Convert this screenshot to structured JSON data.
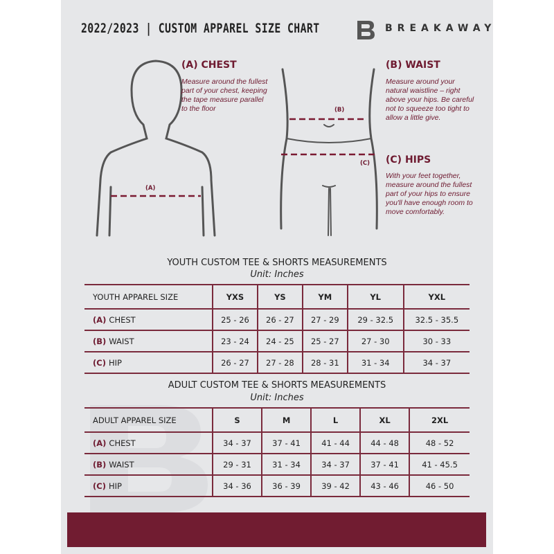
{
  "header": {
    "title": "2022/2023  |  CUSTOM APPAREL SIZE CHART",
    "brand": "BREAKAWAY",
    "logo_letter": "B"
  },
  "guides": {
    "chest": {
      "heading": "(A) CHEST",
      "text": "Measure around the fullest part of your chest, keeping the tape measure parallel to the floor",
      "marker": "(A)"
    },
    "waist": {
      "heading": "(B) WAIST",
      "text": "Measure around your natural waistline – right above your hips. Be careful not to squeeze too tight to allow a little give.",
      "marker": "(B)"
    },
    "hips": {
      "heading": "(C) HIPS",
      "text": "With your feet together, measure around the fullest part of your hips to ensure you'll have enough room to move comfortably.",
      "marker": "(C)"
    }
  },
  "youth": {
    "title": "YOUTH CUSTOM TEE & SHORTS MEASUREMENTS",
    "unit": "Unit: Inches",
    "size_header": "YOUTH APPAREL SIZE",
    "sizes": [
      "YXS",
      "YS",
      "YM",
      "YL",
      "YXL"
    ],
    "rows": [
      {
        "code": "(A)",
        "name": "CHEST",
        "values": [
          "25 - 26",
          "26 - 27",
          "27 - 29",
          "29 - 32.5",
          "32.5 - 35.5"
        ]
      },
      {
        "code": "(B)",
        "name": "WAIST",
        "values": [
          "23 - 24",
          "24 - 25",
          "25 - 27",
          "27 - 30",
          "30 - 33"
        ]
      },
      {
        "code": "(C)",
        "name": "HIP",
        "values": [
          "26 - 27",
          "27 - 28",
          "28 - 31",
          "31 - 34",
          "34 - 37"
        ]
      }
    ]
  },
  "adult": {
    "title": "ADULT CUSTOM TEE & SHORTS MEASUREMENTS",
    "unit": "Unit: Inches",
    "size_header": "ADULT APPAREL SIZE",
    "sizes": [
      "S",
      "M",
      "L",
      "XL",
      "2XL"
    ],
    "rows": [
      {
        "code": "(A)",
        "name": "CHEST",
        "values": [
          "34 - 37",
          "37 - 41",
          "41 - 44",
          "44 - 48",
          "48 - 52"
        ]
      },
      {
        "code": "(B)",
        "name": "WAIST",
        "values": [
          "29 - 31",
          "31 - 34",
          "34 - 37",
          "37 - 41",
          "41 - 45.5"
        ]
      },
      {
        "code": "(C)",
        "name": "HIP",
        "values": [
          "34 - 36",
          "36 - 39",
          "39 - 42",
          "43 - 46",
          "46 - 50"
        ]
      }
    ]
  },
  "colors": {
    "accent": "#711c31",
    "panel": "#e6e7e9"
  }
}
